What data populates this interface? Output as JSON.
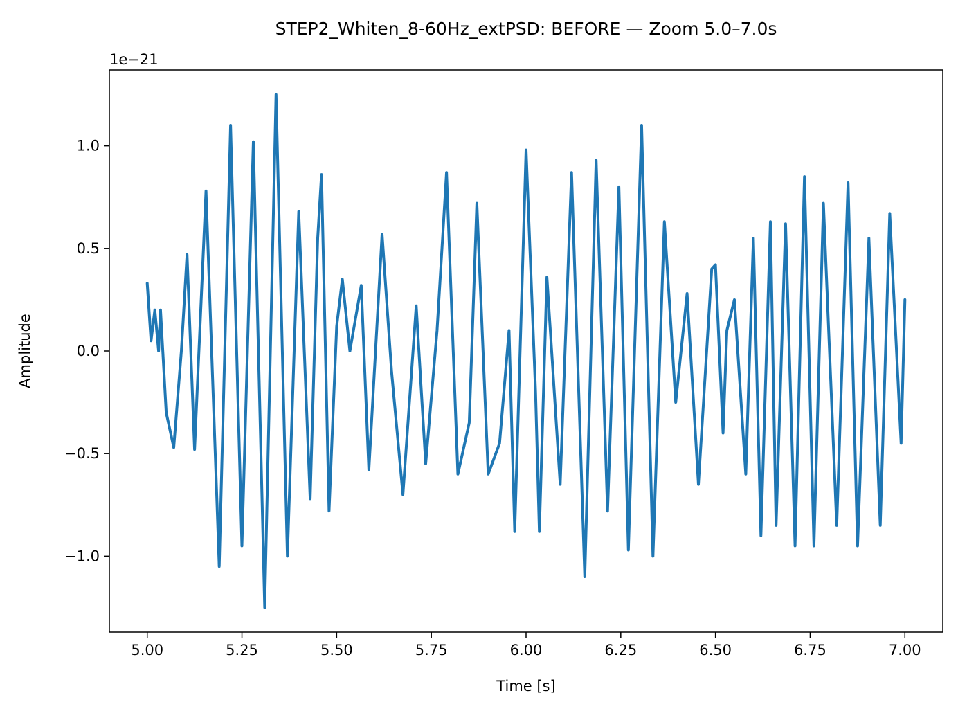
{
  "chart_data": {
    "type": "line",
    "title": "STEP2_Whiten_8-60Hz_extPSD: BEFORE — Zoom 5.0–7.0s",
    "xlabel": "Time [s]",
    "ylabel": "Amplitude",
    "y_offset_text": "1e−21",
    "xlim": [
      4.9,
      7.1
    ],
    "ylim": [
      -1.37,
      1.37
    ],
    "xticks": [
      5.0,
      5.25,
      5.5,
      5.75,
      6.0,
      6.25,
      6.5,
      6.75,
      7.0
    ],
    "xtick_labels": [
      "5.00",
      "5.25",
      "5.50",
      "5.75",
      "6.00",
      "6.25",
      "6.50",
      "6.75",
      "7.00"
    ],
    "yticks": [
      -1.0,
      -0.5,
      0.0,
      0.5,
      1.0
    ],
    "ytick_labels": [
      "−1.0",
      "−0.5",
      "0.0",
      "0.5",
      "1.0"
    ],
    "grid": false,
    "series": [
      {
        "color": "#1f77b4",
        "x": [
          5.0,
          5.01,
          5.02,
          5.03,
          5.035,
          5.05,
          5.07,
          5.09,
          5.105,
          5.125,
          5.155,
          5.19,
          5.22,
          5.25,
          5.28,
          5.31,
          5.34,
          5.37,
          5.4,
          5.43,
          5.45,
          5.46,
          5.48,
          5.5,
          5.515,
          5.535,
          5.565,
          5.585,
          5.62,
          5.645,
          5.675,
          5.71,
          5.735,
          5.765,
          5.79,
          5.82,
          5.85,
          5.87,
          5.9,
          5.93,
          5.955,
          5.97,
          6.0,
          6.025,
          6.035,
          6.055,
          6.09,
          6.12,
          6.155,
          6.185,
          6.215,
          6.245,
          6.27,
          6.305,
          6.335,
          6.365,
          6.395,
          6.425,
          6.455,
          6.49,
          6.5,
          6.52,
          6.53,
          6.55,
          6.58,
          6.6,
          6.62,
          6.645,
          6.66,
          6.685,
          6.71,
          6.735,
          6.76,
          6.785,
          6.82,
          6.85,
          6.875,
          6.905,
          6.935,
          6.96,
          6.99,
          7.0
        ],
        "values": [
          0.33,
          0.05,
          0.2,
          0.0,
          0.2,
          -0.3,
          -0.47,
          0.0,
          0.47,
          -0.48,
          0.78,
          -1.05,
          1.1,
          -0.95,
          1.02,
          -1.25,
          1.25,
          -1.0,
          0.68,
          -0.72,
          0.55,
          0.86,
          -0.78,
          0.12,
          0.35,
          0.0,
          0.32,
          -0.58,
          0.57,
          -0.1,
          -0.7,
          0.22,
          -0.55,
          0.1,
          0.87,
          -0.6,
          -0.35,
          0.72,
          -0.6,
          -0.45,
          0.1,
          -0.88,
          0.98,
          -0.2,
          -0.88,
          0.36,
          -0.65,
          0.87,
          -1.1,
          0.93,
          -0.78,
          0.8,
          -0.97,
          1.1,
          -1.0,
          0.63,
          -0.25,
          0.28,
          -0.65,
          0.4,
          0.42,
          -0.4,
          0.1,
          0.25,
          -0.6,
          0.55,
          -0.9,
          0.63,
          -0.85,
          0.62,
          -0.95,
          0.85,
          -0.95,
          0.72,
          -0.85,
          0.82,
          -0.95,
          0.55,
          -0.85,
          0.67,
          -0.45,
          0.25
        ]
      }
    ]
  }
}
